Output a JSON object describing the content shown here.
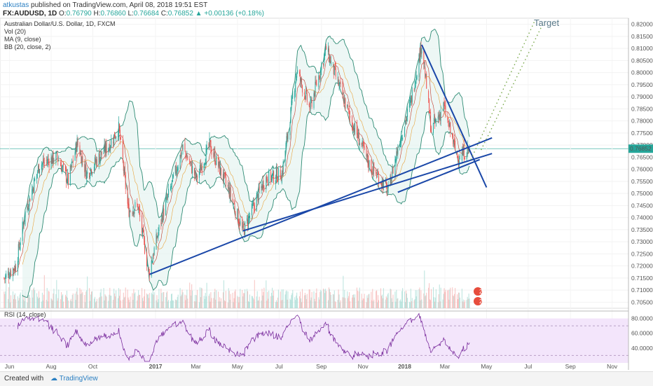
{
  "header": {
    "author": "atkustas",
    "published": "published on TradingView.com, April 08, 2018 19:51 EST",
    "symbol": "FX:AUDUSD, 1D",
    "open_label": "O:",
    "open": "0.76790",
    "high_label": "H:",
    "high": "0.76860",
    "low_label": "L:",
    "low": "0.76684",
    "close_label": "C:",
    "close": "0.76852",
    "change": "▲ +0.00136 (+0.18%)"
  },
  "legend": {
    "title": "Australian Dollar/U.S. Dollar, 1D, FXCM",
    "vol": "Vol (20)",
    "ma": "MA (9, close)",
    "bb": "BB (20, close, 2)"
  },
  "rsi": {
    "label": "RSI (14, close)",
    "ticks": [
      "80.0000",
      "60.0000",
      "40.0000"
    ]
  },
  "annotation": {
    "target": "Target"
  },
  "last_price": "0.76852",
  "colors": {
    "up": "#26a69a",
    "down": "#ef5350",
    "trend": "#1a47a8",
    "bb": "#2e8b74",
    "ma": "#c0392b",
    "rsi": "#7b2e9e",
    "target": "#78a84a"
  },
  "icons": [
    "tradingview-logo-icon",
    "event-flag-icon"
  ],
  "chart_data": {
    "type": "candlestick",
    "symbol": "FX:AUDUSD",
    "x_tick_labels": [
      "Jun",
      "Aug",
      "Oct",
      "2017",
      "Mar",
      "May",
      "Jul",
      "Sep",
      "Nov",
      "2018",
      "Mar",
      "May",
      "Jul",
      "Sep",
      "Nov"
    ],
    "y_tick_labels": [
      "0.82000",
      "0.81500",
      "0.81000",
      "0.80500",
      "0.80000",
      "0.79500",
      "0.79000",
      "0.78500",
      "0.78000",
      "0.77500",
      "0.77000",
      "0.76500",
      "0.76000",
      "0.75500",
      "0.75000",
      "0.74500",
      "0.74000",
      "0.73500",
      "0.73000",
      "0.72500",
      "0.72000",
      "0.71500",
      "0.71000",
      "0.70500"
    ],
    "ylim": [
      0.7025,
      0.8225
    ],
    "price_path": [
      [
        "2016-05-24",
        0.715
      ],
      [
        "2016-06-10",
        0.72
      ],
      [
        "2016-06-24",
        0.742
      ],
      [
        "2016-07-15",
        0.762
      ],
      [
        "2016-08-10",
        0.765
      ],
      [
        "2016-08-26",
        0.755
      ],
      [
        "2016-09-08",
        0.771
      ],
      [
        "2016-09-22",
        0.758
      ],
      [
        "2016-10-10",
        0.765
      ],
      [
        "2016-10-25",
        0.77
      ],
      [
        "2016-11-08",
        0.777
      ],
      [
        "2016-11-22",
        0.743
      ],
      [
        "2016-12-06",
        0.745
      ],
      [
        "2016-12-22",
        0.717
      ],
      [
        "2017-01-10",
        0.74
      ],
      [
        "2017-02-10",
        0.769
      ],
      [
        "2017-03-02",
        0.756
      ],
      [
        "2017-03-21",
        0.77
      ],
      [
        "2017-04-20",
        0.75
      ],
      [
        "2017-05-09",
        0.734
      ],
      [
        "2017-06-10",
        0.756
      ],
      [
        "2017-07-05",
        0.758
      ],
      [
        "2017-07-27",
        0.801
      ],
      [
        "2017-08-15",
        0.785
      ],
      [
        "2017-09-08",
        0.81
      ],
      [
        "2017-09-20",
        0.8
      ],
      [
        "2017-10-15",
        0.78
      ],
      [
        "2017-11-10",
        0.762
      ],
      [
        "2017-12-08",
        0.751
      ],
      [
        "2017-12-22",
        0.769
      ],
      [
        "2018-01-10",
        0.788
      ],
      [
        "2018-01-26",
        0.812
      ],
      [
        "2018-02-09",
        0.776
      ],
      [
        "2018-02-27",
        0.786
      ],
      [
        "2018-03-19",
        0.765
      ],
      [
        "2018-04-06",
        0.7685
      ]
    ],
    "trendlines": [
      {
        "name": "support-2017-01",
        "from": [
          "2016-12-23",
          0.7165
        ],
        "to": [
          "2018-05-09",
          0.773
        ]
      },
      {
        "name": "support-2017-05",
        "from": [
          "2017-05-09",
          0.7345
        ],
        "to": [
          "2018-05-09",
          0.7665
        ]
      },
      {
        "name": "support-2017-12",
        "from": [
          "2017-12-22",
          0.7505
        ],
        "to": [
          "2018-04-21",
          0.764
        ]
      },
      {
        "name": "resistance-2018",
        "from": [
          "2018-01-26",
          0.8115
        ],
        "to": [
          "2018-05-01",
          0.7525
        ]
      }
    ],
    "target_channel": [
      {
        "from": [
          "2018-04-08",
          0.764
        ],
        "to": [
          "2018-07-10",
          0.821
        ]
      },
      {
        "from": [
          "2018-04-23",
          0.768
        ],
        "to": [
          "2018-07-24",
          0.821
        ]
      }
    ],
    "rsi_range": [
      20,
      80
    ]
  }
}
